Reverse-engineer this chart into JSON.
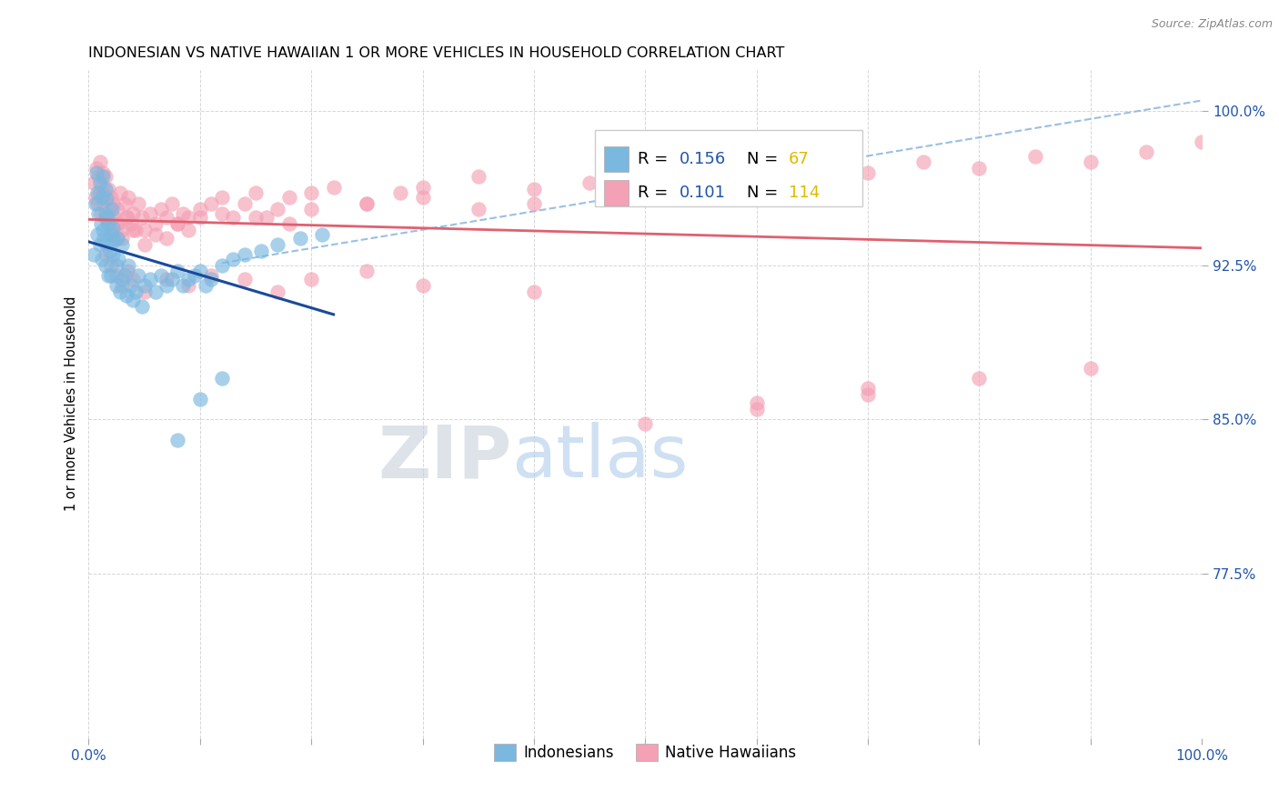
{
  "title": "INDONESIAN VS NATIVE HAWAIIAN 1 OR MORE VEHICLES IN HOUSEHOLD CORRELATION CHART",
  "source": "Source: ZipAtlas.com",
  "ylabel": "1 or more Vehicles in Household",
  "ytick_labels": [
    "100.0%",
    "92.5%",
    "85.0%",
    "77.5%"
  ],
  "ytick_values": [
    1.0,
    0.925,
    0.85,
    0.775
  ],
  "legend_label1": "Indonesians",
  "legend_label2": "Native Hawaiians",
  "blue_color": "#7AB8E0",
  "pink_color": "#F4A0B5",
  "blue_line_color": "#1A4A9A",
  "pink_line_color": "#E06070",
  "dashed_line_color": "#90B8E0",
  "tick_color": "#2255AA",
  "watermark_zip_color": "#C0C8D8",
  "watermark_atlas_color": "#A0C0E0",
  "indo_x": [
    0.005,
    0.006,
    0.007,
    0.008,
    0.008,
    0.009,
    0.01,
    0.01,
    0.011,
    0.012,
    0.012,
    0.013,
    0.013,
    0.014,
    0.015,
    0.015,
    0.015,
    0.016,
    0.016,
    0.017,
    0.018,
    0.018,
    0.019,
    0.02,
    0.02,
    0.021,
    0.022,
    0.022,
    0.023,
    0.025,
    0.025,
    0.026,
    0.027,
    0.028,
    0.03,
    0.03,
    0.032,
    0.034,
    0.036,
    0.038,
    0.04,
    0.042,
    0.045,
    0.048,
    0.05,
    0.055,
    0.06,
    0.065,
    0.07,
    0.075,
    0.08,
    0.085,
    0.09,
    0.095,
    0.1,
    0.105,
    0.11,
    0.12,
    0.13,
    0.14,
    0.155,
    0.17,
    0.19,
    0.21,
    0.1,
    0.12,
    0.08
  ],
  "indo_y": [
    0.93,
    0.955,
    0.97,
    0.94,
    0.96,
    0.95,
    0.935,
    0.965,
    0.945,
    0.958,
    0.928,
    0.942,
    0.968,
    0.938,
    0.925,
    0.95,
    0.962,
    0.935,
    0.957,
    0.948,
    0.92,
    0.945,
    0.932,
    0.94,
    0.92,
    0.952,
    0.93,
    0.943,
    0.937,
    0.925,
    0.915,
    0.938,
    0.928,
    0.912,
    0.935,
    0.918,
    0.92,
    0.91,
    0.925,
    0.915,
    0.908,
    0.912,
    0.92,
    0.905,
    0.915,
    0.918,
    0.912,
    0.92,
    0.915,
    0.918,
    0.922,
    0.915,
    0.918,
    0.92,
    0.922,
    0.915,
    0.918,
    0.925,
    0.928,
    0.93,
    0.932,
    0.935,
    0.938,
    0.94,
    0.86,
    0.87,
    0.84
  ],
  "haw_x": [
    0.005,
    0.006,
    0.007,
    0.008,
    0.009,
    0.01,
    0.01,
    0.011,
    0.012,
    0.013,
    0.014,
    0.015,
    0.015,
    0.016,
    0.017,
    0.018,
    0.019,
    0.02,
    0.02,
    0.022,
    0.023,
    0.025,
    0.026,
    0.027,
    0.028,
    0.03,
    0.032,
    0.034,
    0.036,
    0.038,
    0.04,
    0.042,
    0.045,
    0.048,
    0.05,
    0.055,
    0.06,
    0.065,
    0.07,
    0.075,
    0.08,
    0.085,
    0.09,
    0.1,
    0.11,
    0.12,
    0.13,
    0.14,
    0.15,
    0.16,
    0.17,
    0.18,
    0.2,
    0.22,
    0.25,
    0.28,
    0.3,
    0.35,
    0.4,
    0.45,
    0.5,
    0.55,
    0.6,
    0.65,
    0.7,
    0.75,
    0.8,
    0.85,
    0.9,
    0.95,
    1.0,
    0.02,
    0.025,
    0.03,
    0.035,
    0.04,
    0.05,
    0.06,
    0.07,
    0.08,
    0.09,
    0.1,
    0.12,
    0.15,
    0.18,
    0.2,
    0.25,
    0.3,
    0.35,
    0.4,
    0.5,
    0.6,
    0.7,
    0.8,
    0.9,
    0.015,
    0.02,
    0.025,
    0.03,
    0.035,
    0.04,
    0.05,
    0.07,
    0.09,
    0.11,
    0.14,
    0.17,
    0.2,
    0.25,
    0.3,
    0.4,
    0.5,
    0.6,
    0.7
  ],
  "haw_y": [
    0.965,
    0.958,
    0.972,
    0.955,
    0.968,
    0.96,
    0.975,
    0.95,
    0.963,
    0.97,
    0.955,
    0.948,
    0.968,
    0.958,
    0.945,
    0.962,
    0.952,
    0.958,
    0.942,
    0.955,
    0.948,
    0.938,
    0.952,
    0.945,
    0.96,
    0.942,
    0.955,
    0.948,
    0.958,
    0.945,
    0.95,
    0.942,
    0.955,
    0.948,
    0.942,
    0.95,
    0.945,
    0.952,
    0.948,
    0.955,
    0.945,
    0.95,
    0.948,
    0.952,
    0.955,
    0.958,
    0.948,
    0.955,
    0.96,
    0.948,
    0.952,
    0.958,
    0.96,
    0.963,
    0.955,
    0.96,
    0.963,
    0.968,
    0.962,
    0.965,
    0.97,
    0.968,
    0.972,
    0.965,
    0.97,
    0.975,
    0.972,
    0.978,
    0.975,
    0.98,
    0.985,
    0.94,
    0.945,
    0.938,
    0.948,
    0.942,
    0.935,
    0.94,
    0.938,
    0.945,
    0.942,
    0.948,
    0.95,
    0.948,
    0.945,
    0.952,
    0.955,
    0.958,
    0.952,
    0.955,
    0.962,
    0.858,
    0.865,
    0.87,
    0.875,
    0.93,
    0.925,
    0.92,
    0.915,
    0.922,
    0.918,
    0.912,
    0.918,
    0.915,
    0.92,
    0.918,
    0.912,
    0.918,
    0.922,
    0.915,
    0.912,
    0.848,
    0.855,
    0.862
  ]
}
